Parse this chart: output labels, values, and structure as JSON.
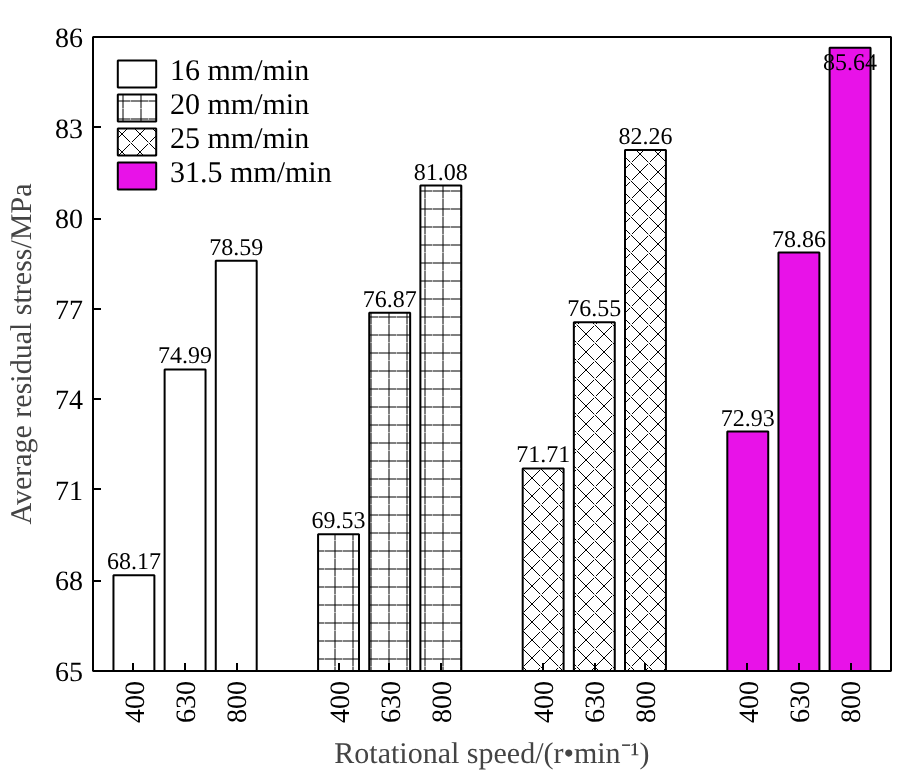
{
  "chart_data": {
    "type": "bar",
    "xlabel": "Rotational speed/(r•min⁻¹)",
    "ylabel": "Average residual stress/MPa",
    "categories": [
      "400",
      "630",
      "800",
      "400",
      "630",
      "800",
      "400",
      "630",
      "800",
      "400",
      "630",
      "800"
    ],
    "series": [
      {
        "name": "16 mm/min",
        "color": "#ffffff",
        "values": [
          68.17,
          74.99,
          78.59,
          null,
          null,
          null,
          null,
          null,
          null,
          null,
          null,
          null
        ]
      },
      {
        "name": "20 mm/min",
        "color": "#ffffff",
        "values": [
          null,
          null,
          null,
          69.53,
          76.87,
          81.08,
          null,
          null,
          null,
          null,
          null,
          null
        ]
      },
      {
        "name": "25 mm/min",
        "color": "#ffffff",
        "values": [
          null,
          null,
          null,
          null,
          null,
          null,
          71.71,
          76.55,
          82.26,
          null,
          null,
          null
        ]
      },
      {
        "name": "31.5 mm/min",
        "color": "#e812e8",
        "values": [
          null,
          null,
          null,
          null,
          null,
          null,
          null,
          null,
          null,
          72.93,
          78.86,
          85.64
        ]
      }
    ],
    "ylim": [
      65,
      86
    ],
    "yticks": [
      65,
      68,
      71,
      74,
      77,
      80,
      83,
      86
    ],
    "data_labels": true,
    "legend": "top left",
    "grid": false
  }
}
